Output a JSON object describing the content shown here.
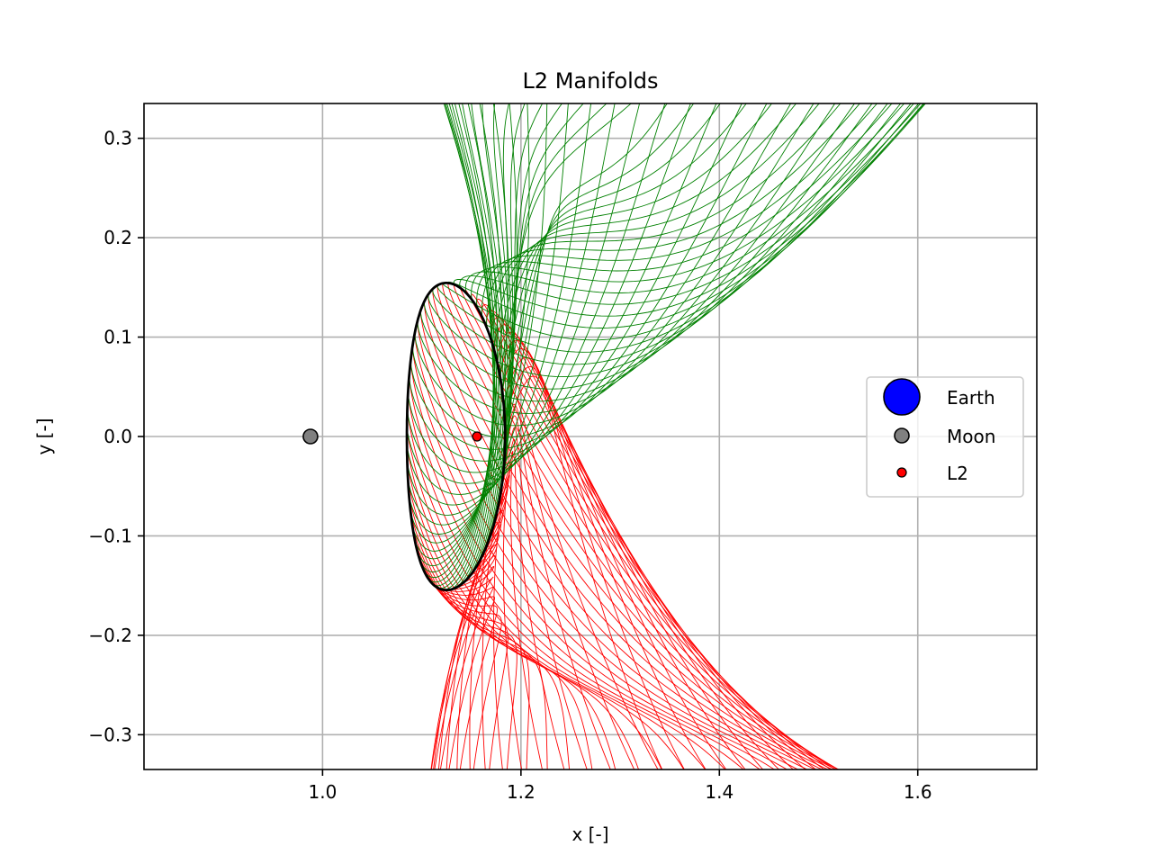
{
  "chart_data": {
    "type": "line",
    "title": "L2 Manifolds",
    "xlabel": "x [-]",
    "ylabel": "y [-]",
    "xlim": [
      0.82,
      1.72
    ],
    "ylim": [
      -0.335,
      0.335
    ],
    "xticks": [
      1.0,
      1.2,
      1.4,
      1.6
    ],
    "xtick_labels": [
      "1.0",
      "1.2",
      "1.4",
      "1.6"
    ],
    "yticks": [
      0.3,
      0.2,
      0.1,
      0.0,
      -0.1,
      -0.2,
      -0.3
    ],
    "ytick_labels": [
      "0.3",
      "0.2",
      "0.1",
      "0.0",
      "−0.1",
      "−0.2",
      "−0.3"
    ],
    "grid": true,
    "legend_position": "center-right",
    "legend": [
      {
        "label": "Earth",
        "color": "#0000ff",
        "marker": "large-circle"
      },
      {
        "label": "Moon",
        "color": "#808080",
        "marker": "circle"
      },
      {
        "label": "L2",
        "color": "#ff0000",
        "marker": "small-circle"
      }
    ],
    "points": [
      {
        "name": "Moon",
        "x": 0.9878,
        "y": 0.0,
        "color": "#808080"
      },
      {
        "name": "L2",
        "x": 1.1557,
        "y": 0.0,
        "color": "#ff0000"
      }
    ],
    "halo_orbit": {
      "name": "L2 halo orbit",
      "color": "#000000",
      "x_range": [
        1.085,
        1.197
      ],
      "y_extent": 0.154
    },
    "manifolds": [
      {
        "name": "unstable manifold",
        "color": "#008000",
        "count": 60
      },
      {
        "name": "stable manifold",
        "color": "#ff0000",
        "count": 60
      }
    ]
  }
}
